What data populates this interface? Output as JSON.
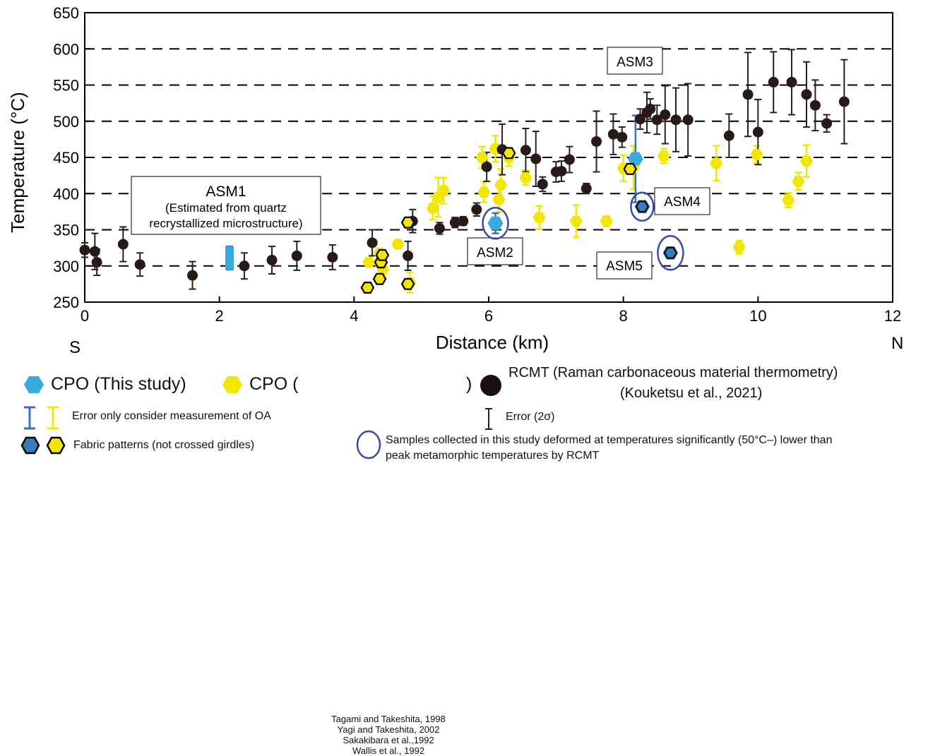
{
  "chart_data": {
    "type": "scatter",
    "xlabel": "Distance (km)",
    "ylabel": "Temperature (°C)",
    "xlim": [
      0,
      12
    ],
    "ylim": [
      250,
      650
    ],
    "xticks": [
      0,
      2,
      4,
      6,
      8,
      10,
      12
    ],
    "yticks": [
      250,
      300,
      350,
      400,
      450,
      500,
      550,
      600,
      650
    ],
    "x_end_labels": {
      "left": "S",
      "right": "N"
    },
    "colors": {
      "rcmt": "#2a1a17",
      "this_study": "#3aa9de",
      "previous": "#f3e600",
      "sample_ring": "#3a4aa6"
    },
    "series": [
      {
        "name": "RCMT (Raman carbonaceous material thermometry)",
        "marker": "circle",
        "points": [
          [
            0.0,
            322,
            10
          ],
          [
            0.15,
            320,
            25
          ],
          [
            0.18,
            305,
            18
          ],
          [
            0.57,
            330,
            24
          ],
          [
            0.82,
            302,
            16
          ],
          [
            1.6,
            287,
            19
          ],
          [
            2.37,
            300,
            18
          ],
          [
            2.78,
            308,
            19
          ],
          [
            3.15,
            314,
            20
          ],
          [
            3.68,
            312,
            17
          ],
          [
            4.27,
            332,
            18
          ],
          [
            4.8,
            314,
            20
          ],
          [
            4.87,
            362,
            16
          ],
          [
            5.27,
            352,
            8
          ],
          [
            5.5,
            360,
            7
          ],
          [
            5.62,
            362,
            6
          ],
          [
            5.82,
            378,
            9
          ],
          [
            5.97,
            437,
            20
          ],
          [
            6.2,
            461,
            35
          ],
          [
            6.55,
            460,
            30
          ],
          [
            6.7,
            448,
            38
          ],
          [
            6.8,
            413,
            10
          ],
          [
            7.0,
            430,
            14
          ],
          [
            7.08,
            431,
            14
          ],
          [
            7.2,
            447,
            18
          ],
          [
            7.45,
            407,
            7
          ],
          [
            7.6,
            472,
            42
          ],
          [
            7.85,
            482,
            28
          ],
          [
            7.98,
            478,
            14
          ],
          [
            8.25,
            503,
            14
          ],
          [
            8.35,
            512,
            28
          ],
          [
            8.4,
            517,
            14
          ],
          [
            8.5,
            502,
            20
          ],
          [
            8.62,
            509,
            40
          ],
          [
            8.78,
            502,
            44
          ],
          [
            8.96,
            502,
            50
          ],
          [
            9.57,
            480,
            30
          ],
          [
            9.85,
            537,
            58
          ],
          [
            10.0,
            485,
            45
          ],
          [
            10.23,
            554,
            42
          ],
          [
            10.5,
            554,
            45
          ],
          [
            10.72,
            537,
            45
          ],
          [
            10.85,
            522,
            35
          ],
          [
            11.02,
            497,
            12
          ],
          [
            11.28,
            527,
            58
          ]
        ]
      },
      {
        "name": "CPO (Tagami and Takeshita, 1998 · Yagi and Takeshita, 2002 · Sakakibara et al.,1992 · Wallis et al., 1992)",
        "marker": "hexagon",
        "points": [
          [
            4.22,
            305,
            0
          ],
          [
            4.38,
            318,
            0
          ],
          [
            4.38,
            305,
            0
          ],
          [
            4.43,
            295,
            0
          ],
          [
            4.65,
            330,
            0
          ],
          [
            4.8,
            360,
            0
          ],
          [
            4.83,
            277,
            14
          ],
          [
            5.17,
            380,
            16
          ],
          [
            5.25,
            395,
            27
          ],
          [
            5.33,
            404,
            18
          ],
          [
            5.9,
            450,
            15
          ],
          [
            5.93,
            402,
            14
          ],
          [
            6.1,
            462,
            18
          ],
          [
            6.15,
            392,
            18
          ],
          [
            6.18,
            412,
            22
          ],
          [
            6.3,
            450,
            12
          ],
          [
            6.55,
            422,
            10
          ],
          [
            6.75,
            367,
            16
          ],
          [
            7.3,
            362,
            22
          ],
          [
            7.75,
            362,
            7
          ],
          [
            8.0,
            435,
            18
          ],
          [
            8.15,
            436,
            30
          ],
          [
            8.6,
            452,
            10
          ],
          [
            9.38,
            442,
            24
          ],
          [
            9.72,
            326,
            9
          ],
          [
            9.98,
            454,
            12
          ],
          [
            10.45,
            391,
            10
          ],
          [
            10.6,
            417,
            12
          ],
          [
            10.72,
            445,
            22
          ]
        ]
      },
      {
        "name": "CPO (This study)",
        "marker": "hexagon",
        "points": [
          [
            2.15,
            311,
            16
          ],
          [
            6.1,
            359,
            14
          ],
          [
            8.18,
            448,
            60
          ],
          [
            8.28,
            382,
            0
          ],
          [
            8.7,
            318,
            0
          ]
        ]
      },
      {
        "name": "Fabric patterns (not crossed girdles)",
        "marker": "hexagon-outlined",
        "points": [
          [
            4.2,
            270
          ],
          [
            4.38,
            282
          ],
          [
            4.4,
            305
          ],
          [
            4.42,
            315
          ],
          [
            4.8,
            360
          ],
          [
            4.8,
            275
          ],
          [
            6.3,
            456
          ],
          [
            8.1,
            434
          ],
          [
            8.28,
            382
          ],
          [
            8.7,
            318
          ]
        ]
      }
    ],
    "annotations": [
      {
        "title": "ASM1",
        "text": "(Estimated from quartz",
        "text2": "recrystallized microstructure)"
      },
      {
        "text": "ASM2"
      },
      {
        "text": "ASM3"
      },
      {
        "text": "ASM4"
      },
      {
        "text": "ASM5"
      }
    ]
  },
  "legend": {
    "cpo_this_study": "CPO (This study)",
    "cpo_prefix": "CPO (",
    "cpo_suffix": ")",
    "refs": [
      "Tagami and Takeshita, 1998",
      "Yagi and Takeshita, 2002",
      "Sakakibara et al.,1992",
      "Wallis et al., 1992"
    ],
    "rcmt_line1": "RCMT (Raman carbonaceous material thermometry)",
    "rcmt_line2": "(Kouketsu et al., 2021)",
    "error_oa": "Error only consider measurement of OA",
    "error_2s": "Error (2σ)",
    "fabric": "Fabric patterns (not crossed girdles)",
    "samples_line1": "Samples collected in this study deformed at temperatures significantly (50°C–) lower than",
    "samples_line2": "peak metamorphic temperatures by RCMT"
  }
}
